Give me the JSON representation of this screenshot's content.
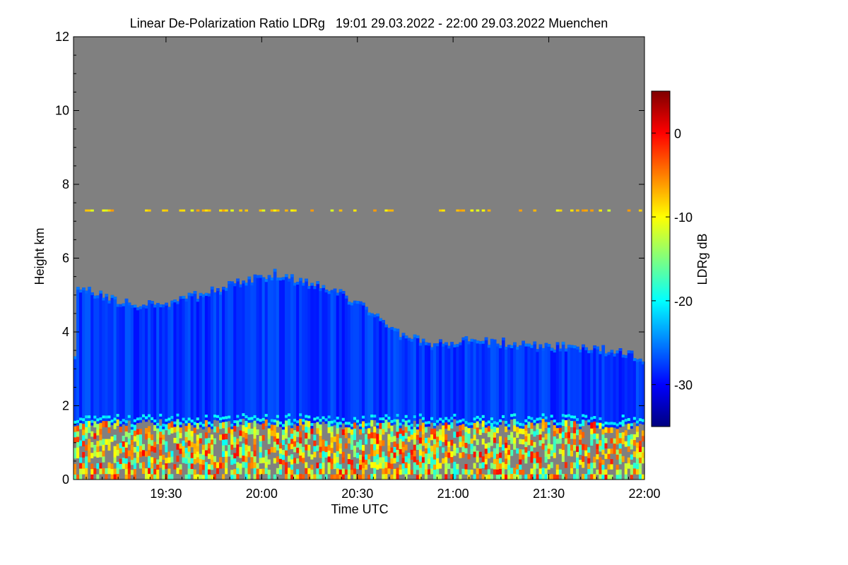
{
  "chart_data": {
    "type": "heatmap",
    "title": "Linear De-Polarization Ratio LDRg   19:01 29.03.2022 - 22:00 29.03.2022 Muenchen",
    "xlabel": "Time UTC",
    "ylabel": "Height km",
    "colorbar_label": "LDRg dB",
    "x_ticks": [
      "19:30",
      "20:00",
      "20:30",
      "21:00",
      "21:30",
      "22:00"
    ],
    "x_tick_values_hours": [
      19.5,
      20.0,
      20.5,
      21.0,
      21.5,
      22.0
    ],
    "xlim_hours": [
      19.0167,
      22.0
    ],
    "y_ticks": [
      "0",
      "2",
      "4",
      "6",
      "8",
      "10",
      "12"
    ],
    "y_tick_values": [
      0,
      2,
      4,
      6,
      8,
      10,
      12
    ],
    "ylim": [
      0,
      12
    ],
    "colorbar_ticks": [
      "0",
      "-10",
      "-20",
      "-30"
    ],
    "colorbar_tick_values": [
      0,
      -10,
      -20,
      -30
    ],
    "colorbar_range": [
      -35,
      5
    ],
    "colorscale": [
      "#00007f",
      "#0000ff",
      "#007fff",
      "#00ffff",
      "#7fff7f",
      "#ffff00",
      "#ff7f00",
      "#ff0000",
      "#7f0000"
    ],
    "background_color": "#808080",
    "cloud": {
      "layer_ldr_db": -28,
      "top_km_profile": [
        {
          "t": 19.02,
          "h": 5.3
        },
        {
          "t": 19.2,
          "h": 4.9
        },
        {
          "t": 19.45,
          "h": 4.7
        },
        {
          "t": 19.65,
          "h": 5.0
        },
        {
          "t": 19.9,
          "h": 5.4
        },
        {
          "t": 20.05,
          "h": 5.6
        },
        {
          "t": 20.35,
          "h": 5.2
        },
        {
          "t": 20.6,
          "h": 4.5
        },
        {
          "t": 20.7,
          "h": 4.0
        },
        {
          "t": 20.85,
          "h": 3.7
        },
        {
          "t": 21.1,
          "h": 3.8
        },
        {
          "t": 21.3,
          "h": 3.7
        },
        {
          "t": 21.6,
          "h": 3.6
        },
        {
          "t": 21.85,
          "h": 3.5
        },
        {
          "t": 22.0,
          "h": 3.3
        }
      ],
      "base_km": 1.5,
      "aerosol_layer_km": [
        0.0,
        1.5
      ],
      "aerosol_ldr_db_range": [
        -20,
        0
      ],
      "thin_layer_km": 7.3
    }
  }
}
